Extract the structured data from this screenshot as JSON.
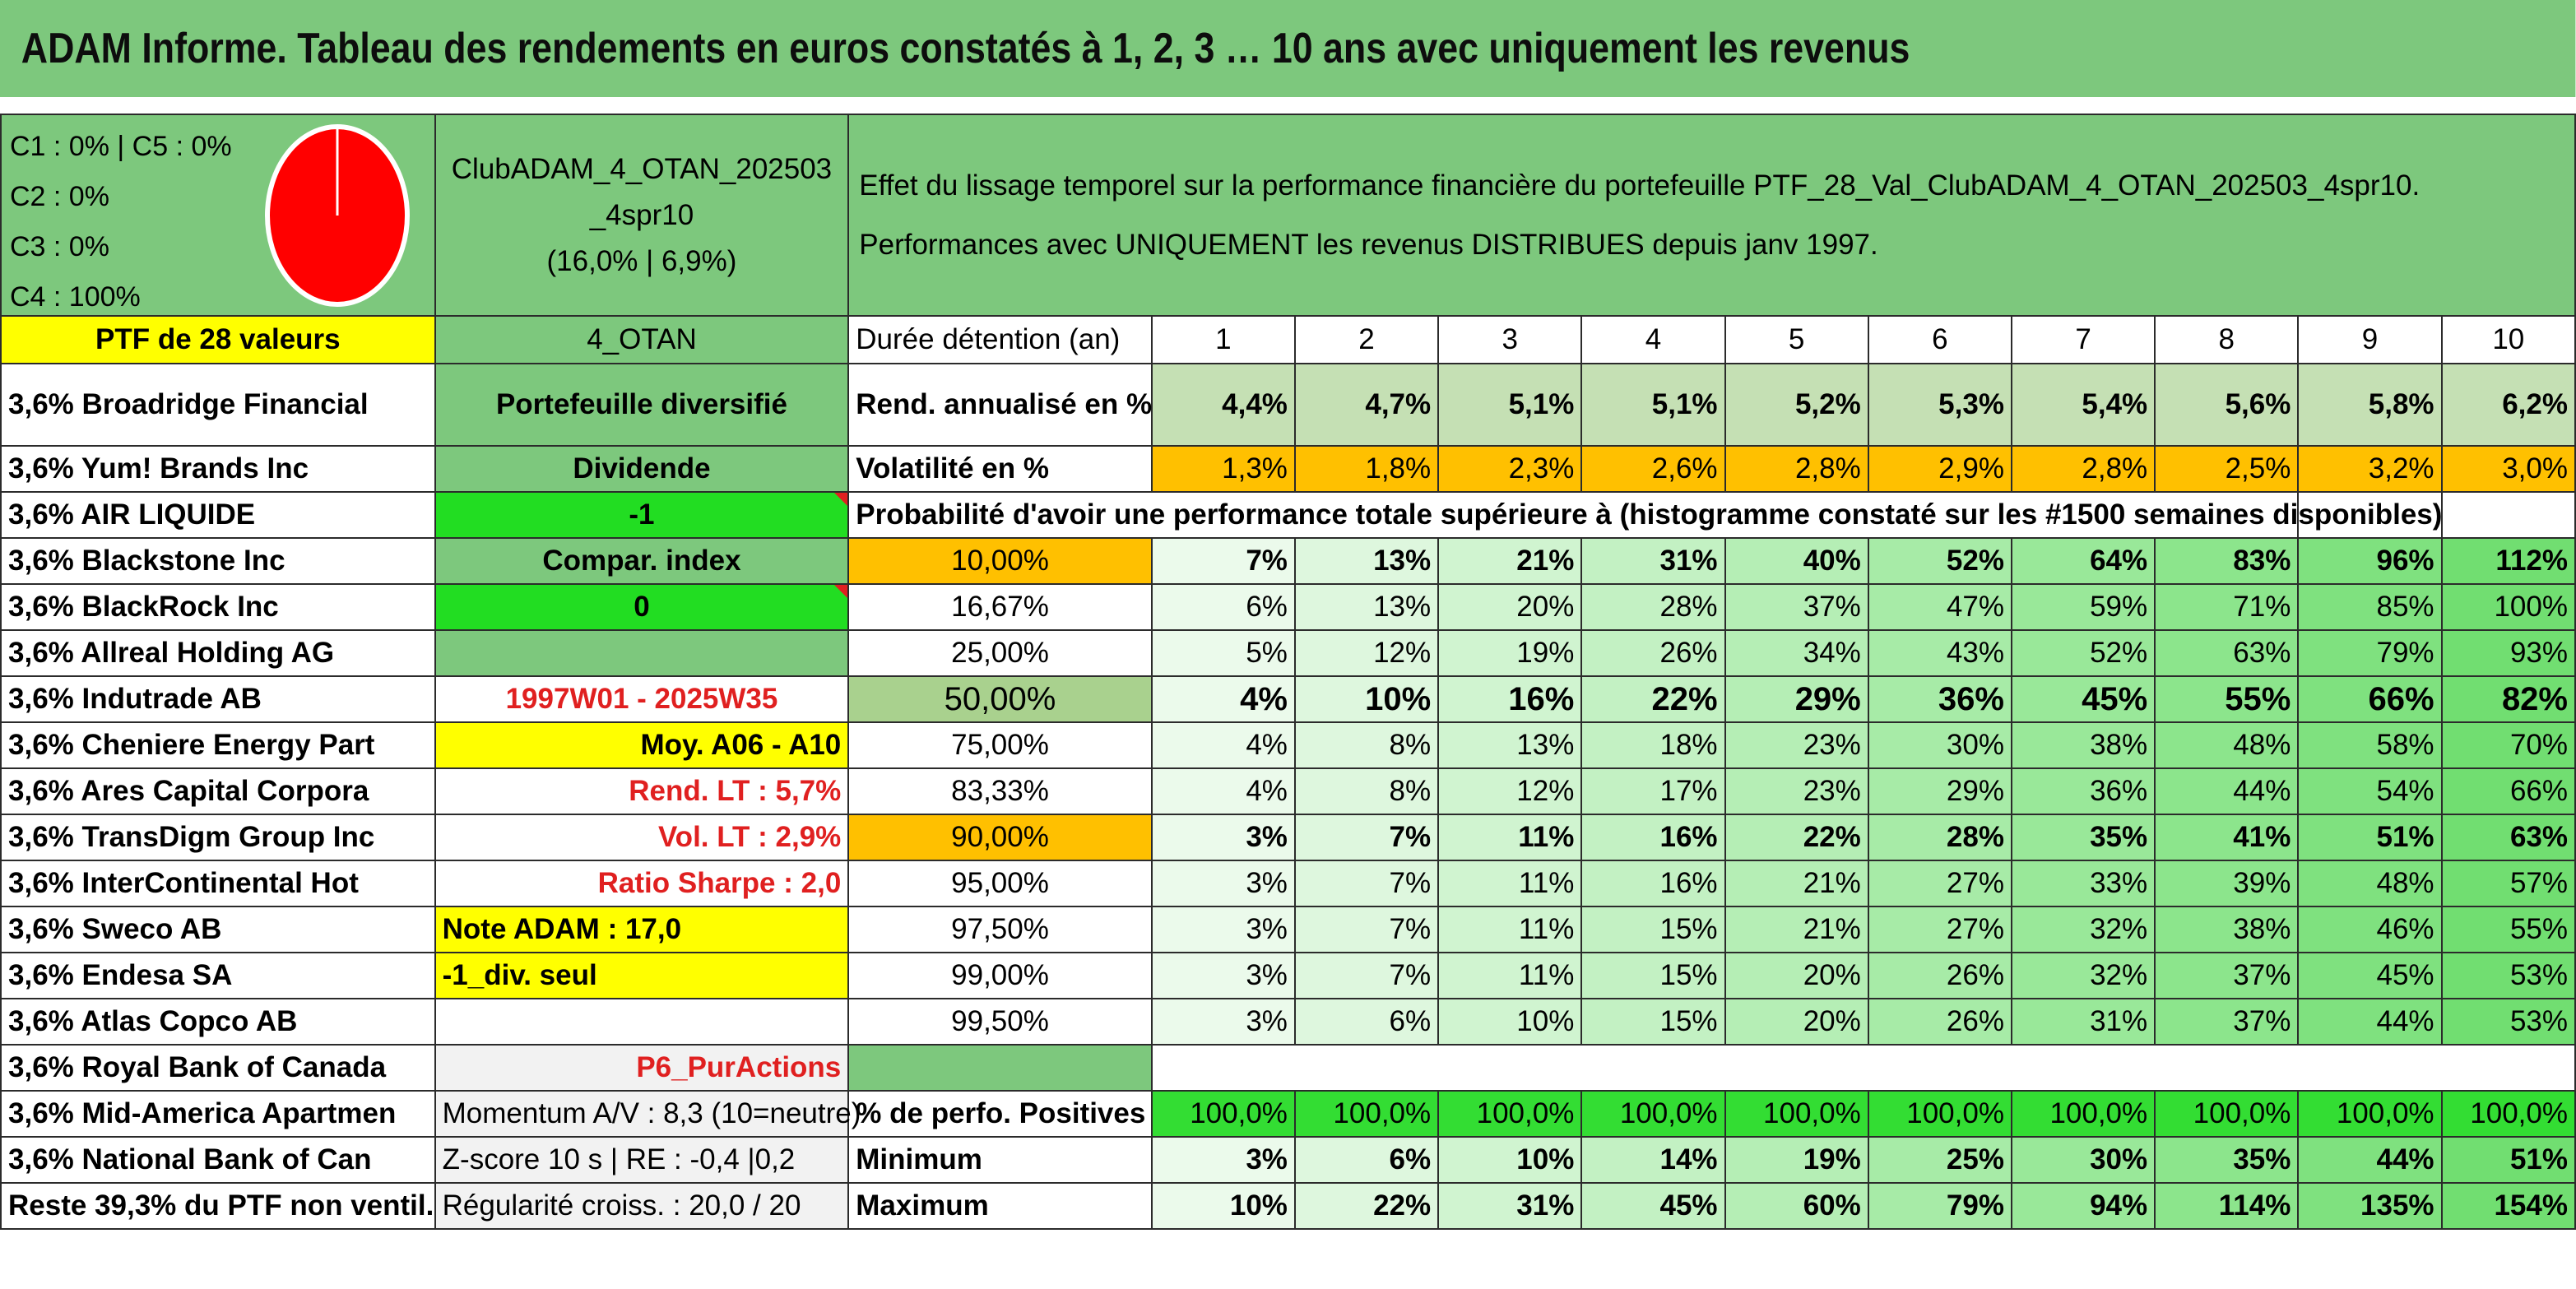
{
  "title": "ADAM Informe. Tableau des rendements en euros constatés à 1, 2, 3 … 10 ans avec uniquement les revenus",
  "composition": {
    "lines": [
      "C1 : 0% | C5 : 0%",
      "C2 : 0%",
      "C3 : 0%",
      "C4 : 100%"
    ],
    "pie_color": "#ff0000"
  },
  "fund": {
    "name_line1": "ClubADAM_4_OTAN_202503",
    "name_line2": "_4spr10",
    "stats": "(16,0% | 6,9%)"
  },
  "effect_text": {
    "line1": "Effet du lissage temporel sur la performance financière du portefeuille PTF_28_Val_ClubADAM_4_OTAN_202503_4spr10.",
    "line2": "Performances avec UNIQUEMENT les revenus DISTRIBUES depuis janv 1997."
  },
  "ptf_header": "PTF de 28 valeurs",
  "otan_label": "4_OTAN",
  "duration_label": "Durée détention (an)",
  "years": [
    "1",
    "2",
    "3",
    "4",
    "5",
    "6",
    "7",
    "8",
    "9",
    "10"
  ],
  "holdings": [
    "3,6% Broadridge Financial",
    "3,6% Yum! Brands Inc",
    "3,6% AIR LIQUIDE",
    "3,6% Blackstone Inc",
    "3,6% BlackRock Inc",
    "3,6% Allreal Holding AG",
    "3,6% Indutrade AB",
    "3,6% Cheniere Energy Part",
    "3,6% Ares Capital Corpora",
    "3,6% TransDigm Group Inc",
    "3,6% InterContinental Hot",
    "3,6% Sweco AB",
    "3,6% Endesa SA",
    "3,6% Atlas Copco AB",
    "3,6% Royal Bank of Canada",
    "3,6% Mid-America Apartmen",
    "3,6% National Bank of Can",
    "Reste 39,3% du PTF non ventil."
  ],
  "info": {
    "portefeuille": "Portefeuille diversifié",
    "dividende": "Dividende",
    "minus_one": "-1",
    "compar_index": "Compar. index",
    "zero": "0",
    "period": "1997W01 - 2025W35",
    "moy": "Moy. A06 - A10",
    "rend_lt": "Rend. LT : 5,7%",
    "vol_lt": "Vol. LT : 2,9%",
    "sharpe": "Ratio Sharpe : 2,0",
    "note": "Note ADAM : 17,0",
    "div_seul": "-1_div. seul",
    "p6": "P6_PurActions",
    "momentum": "Momentum A/V : 8,3 (10=neutre)",
    "zscore": "Z-score 10 s | RE : -0,4 |0,2",
    "regularite": "Régularité croiss. : 20,0 / 20"
  },
  "rend": {
    "label": "Rend. annualisé en %",
    "values": [
      "4,4%",
      "4,7%",
      "5,1%",
      "5,1%",
      "5,2%",
      "5,3%",
      "5,4%",
      "5,6%",
      "5,8%",
      "6,2%"
    ]
  },
  "vol": {
    "label": "Volatilité en %",
    "values": [
      "1,3%",
      "1,8%",
      "2,3%",
      "2,6%",
      "2,8%",
      "2,9%",
      "2,8%",
      "2,5%",
      "3,2%",
      "3,0%"
    ]
  },
  "proba_header": "Probabilité d'avoir une performance totale supérieure à (histogramme constaté sur les #1500 semaines disponibles)",
  "proba_rows": [
    {
      "p": "10,00%",
      "v": [
        "7%",
        "13%",
        "21%",
        "31%",
        "40%",
        "52%",
        "64%",
        "83%",
        "96%",
        "112%"
      ]
    },
    {
      "p": "16,67%",
      "v": [
        "6%",
        "13%",
        "20%",
        "28%",
        "37%",
        "47%",
        "59%",
        "71%",
        "85%",
        "100%"
      ]
    },
    {
      "p": "25,00%",
      "v": [
        "5%",
        "12%",
        "19%",
        "26%",
        "34%",
        "43%",
        "52%",
        "63%",
        "79%",
        "93%"
      ]
    },
    {
      "p": "50,00%",
      "v": [
        "4%",
        "10%",
        "16%",
        "22%",
        "29%",
        "36%",
        "45%",
        "55%",
        "66%",
        "82%"
      ]
    },
    {
      "p": "75,00%",
      "v": [
        "4%",
        "8%",
        "13%",
        "18%",
        "23%",
        "30%",
        "38%",
        "48%",
        "58%",
        "70%"
      ]
    },
    {
      "p": "83,33%",
      "v": [
        "4%",
        "8%",
        "12%",
        "17%",
        "23%",
        "29%",
        "36%",
        "44%",
        "54%",
        "66%"
      ]
    },
    {
      "p": "90,00%",
      "v": [
        "3%",
        "7%",
        "11%",
        "16%",
        "22%",
        "28%",
        "35%",
        "41%",
        "51%",
        "63%"
      ]
    },
    {
      "p": "95,00%",
      "v": [
        "3%",
        "7%",
        "11%",
        "16%",
        "21%",
        "27%",
        "33%",
        "39%",
        "48%",
        "57%"
      ]
    },
    {
      "p": "97,50%",
      "v": [
        "3%",
        "7%",
        "11%",
        "15%",
        "21%",
        "27%",
        "32%",
        "38%",
        "46%",
        "55%"
      ]
    },
    {
      "p": "99,00%",
      "v": [
        "3%",
        "7%",
        "11%",
        "15%",
        "20%",
        "26%",
        "32%",
        "37%",
        "45%",
        "53%"
      ]
    },
    {
      "p": "99,50%",
      "v": [
        "3%",
        "6%",
        "10%",
        "15%",
        "20%",
        "26%",
        "31%",
        "37%",
        "44%",
        "53%"
      ]
    }
  ],
  "positives": {
    "label": "% de perfo. Positives",
    "values": [
      "100,0%",
      "100,0%",
      "100,0%",
      "100,0%",
      "100,0%",
      "100,0%",
      "100,0%",
      "100,0%",
      "100,0%",
      "100,0%"
    ]
  },
  "minimum": {
    "label": "Minimum",
    "values": [
      "3%",
      "6%",
      "10%",
      "14%",
      "19%",
      "25%",
      "30%",
      "35%",
      "44%",
      "51%"
    ]
  },
  "maximum": {
    "label": "Maximum",
    "values": [
      "10%",
      "22%",
      "31%",
      "45%",
      "60%",
      "79%",
      "94%",
      "114%",
      "135%",
      "154%"
    ]
  },
  "colors": {
    "header_green": "#7dc87d",
    "yellow": "#ffff00",
    "bright_green": "#22dd22",
    "orange": "#ffc000",
    "red_text": "#e02020"
  }
}
